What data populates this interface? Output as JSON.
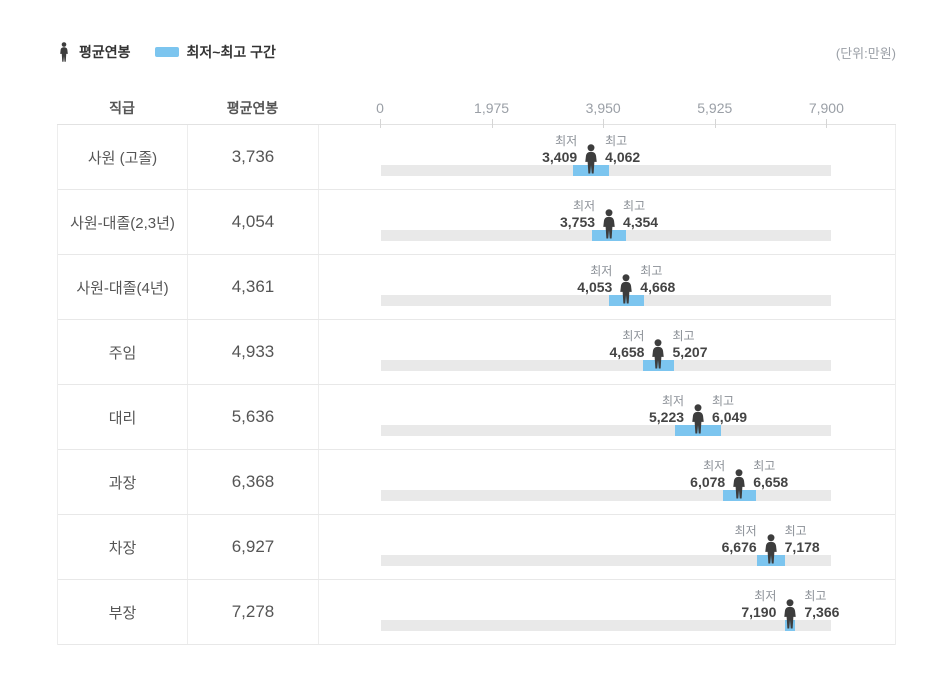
{
  "legend": {
    "avg_label": "평균연봉",
    "range_label": "최저~최고 구간",
    "unit_label": "(단위:만원)"
  },
  "header": {
    "grade": "직급",
    "avg": "평균연봉"
  },
  "colors": {
    "range_blue": "#7cc5ef",
    "track_gray": "#e9e9e9",
    "icon_dark": "#3d3d3d"
  },
  "chart_data": {
    "type": "bar",
    "unit": "만원",
    "legend": [
      "평균연봉",
      "최저~최고 구간"
    ],
    "axis": {
      "tick_values": [
        0,
        1975,
        3950,
        5925,
        7900
      ],
      "tick_labels": [
        "0",
        "1,975",
        "3,950",
        "5,925",
        "7,900"
      ],
      "scale_max": 8000
    },
    "min_label": "최저",
    "max_label": "최고",
    "rows": [
      {
        "grade": "사원 (고졸)",
        "avg": 3736,
        "min": 3409,
        "max": 4062
      },
      {
        "grade": "사원-대졸(2,3년)",
        "avg": 4054,
        "min": 3753,
        "max": 4354
      },
      {
        "grade": "사원-대졸(4년)",
        "avg": 4361,
        "min": 4053,
        "max": 4668
      },
      {
        "grade": "주임",
        "avg": 4933,
        "min": 4658,
        "max": 5207
      },
      {
        "grade": "대리",
        "avg": 5636,
        "min": 5223,
        "max": 6049
      },
      {
        "grade": "과장",
        "avg": 6368,
        "min": 6078,
        "max": 6658
      },
      {
        "grade": "차장",
        "avg": 6927,
        "min": 6676,
        "max": 7178
      },
      {
        "grade": "부장",
        "avg": 7278,
        "min": 7190,
        "max": 7366
      }
    ]
  }
}
